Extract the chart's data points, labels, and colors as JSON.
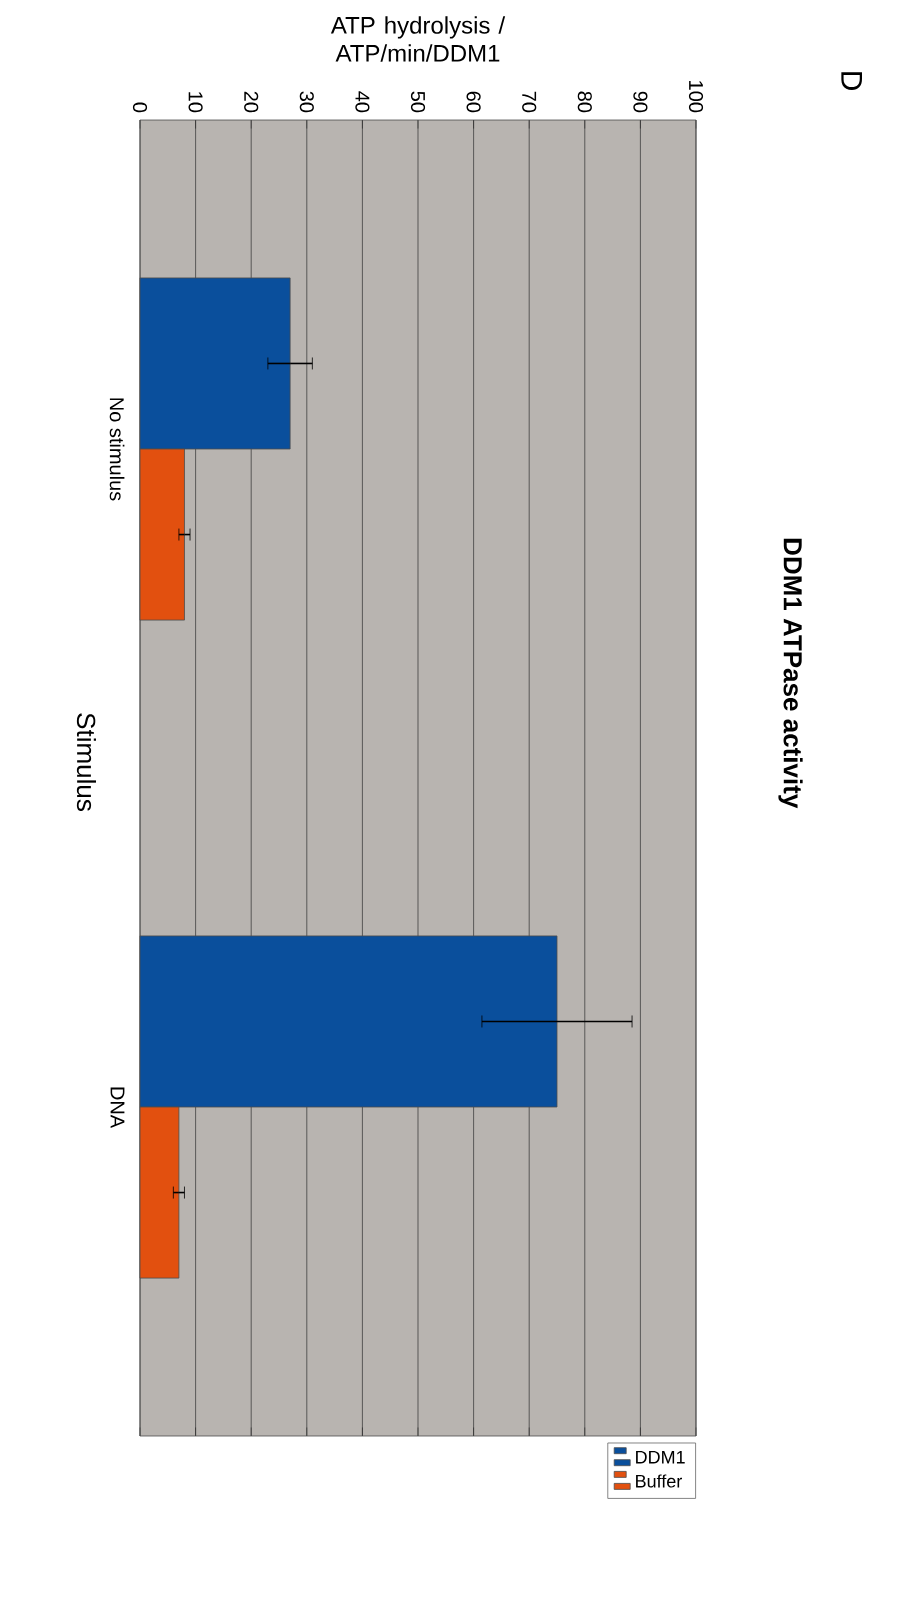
{
  "chart_data": {
    "type": "bar",
    "orientation": "horizontal",
    "title": "DDM1 ATPase activity",
    "xlabel": "ATP hydrolysis / ATP/min/DDM1",
    "ylabel": "Stimulus",
    "categories": [
      "No stimulus",
      "DNA"
    ],
    "series": [
      {
        "name": "DDM1",
        "color": "#0a4f9c",
        "values": [
          27,
          75
        ],
        "errors": [
          4,
          13.5
        ]
      },
      {
        "name": "Buffer",
        "color": "#e2500f",
        "values": [
          8,
          7
        ],
        "errors": [
          1,
          1
        ]
      }
    ],
    "xlim": [
      0,
      100
    ],
    "xticks": [
      0,
      10,
      20,
      30,
      40,
      50,
      60,
      70,
      80,
      90,
      100
    ],
    "grid": "x",
    "legend": "bottom right",
    "annotations": [
      "D"
    ]
  }
}
